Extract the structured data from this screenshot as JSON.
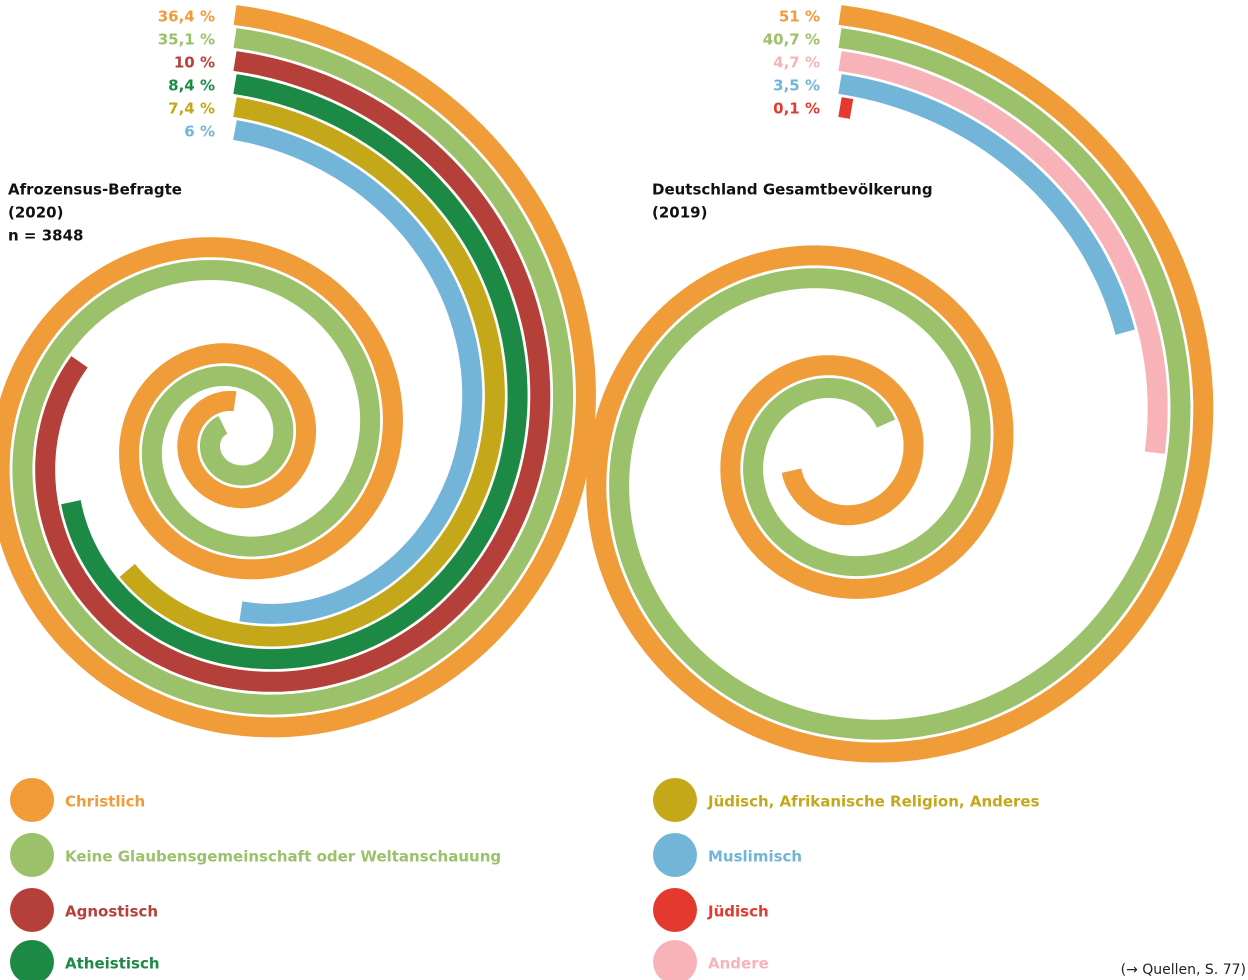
{
  "chart_data": [
    {
      "type": "spiral",
      "title": "Afrozensus-Befragte",
      "subtitle": "(2020)",
      "annotation": "n = 3848",
      "values": [
        36.4,
        35.1,
        10,
        8.4,
        7.4,
        6
      ],
      "value_labels": [
        "36,4 %",
        "35,1 %",
        "10 %",
        "8,4 %",
        "7,4 %",
        "6 %"
      ],
      "colors": [
        "#f09c38",
        "#9bc16a",
        "#b5403a",
        "#1c8a45",
        "#c4a81a",
        "#72b5d8"
      ]
    },
    {
      "type": "spiral",
      "title": "Deutschland Gesamtbevölkerung",
      "subtitle": "(2019)",
      "values": [
        51,
        40.7,
        4.7,
        3.5,
        0.1
      ],
      "value_labels": [
        "51 %",
        "40,7 %",
        "4,7 %",
        "3,5 %",
        "0,1 %"
      ],
      "colors": [
        "#f09c38",
        "#9bc16a",
        "#f7b3b8",
        "#72b5d8",
        "#e4392f"
      ]
    }
  ],
  "legend": {
    "items": [
      {
        "name": "Christlich",
        "color": "#f09c38"
      },
      {
        "name": "Keine Glaubensgemeinschaft oder Weltanschauung",
        "color": "#9bc16a"
      },
      {
        "name": "Agnostisch",
        "color": "#b5403a"
      },
      {
        "name": "Atheistisch",
        "color": "#1c8a45"
      },
      {
        "name": "Jüdisch, Afrikanische Religion, Anderes",
        "color": "#c4a81a"
      },
      {
        "name": "Muslimisch",
        "color": "#72b5d8"
      },
      {
        "name": "Jüdisch",
        "color": "#e4392f"
      },
      {
        "name": "Andere",
        "color": "#f7b3b8"
      }
    ]
  },
  "source": "(→ Quellen, S. 77)"
}
